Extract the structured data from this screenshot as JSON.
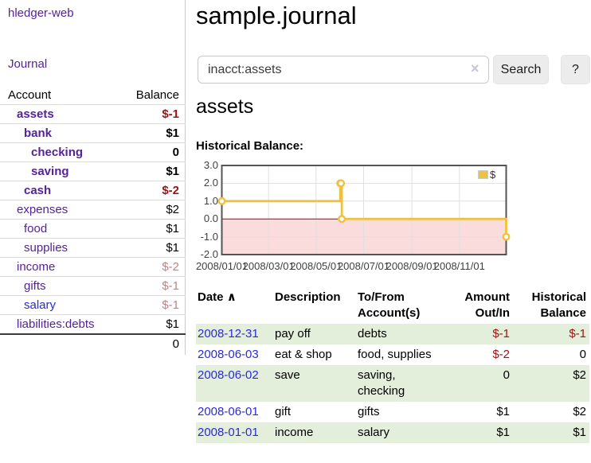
{
  "colors": {
    "link_purple": "#552299",
    "link_blue": "#2929e0",
    "negative_strong": "#a01313",
    "negative_soft": "#c4817f",
    "stripe_green": "#e3eedb",
    "chart_gold": "#edc240",
    "chart_negative_fill": "#fadcdc",
    "chart_zero_line": "#aa0000"
  },
  "sidebar": {
    "app_title": "hledger-web",
    "nav_journal": "Journal",
    "accounts_header": {
      "account": "Account",
      "balance": "Balance"
    },
    "accounts": [
      {
        "name": "assets",
        "balance": "$-1",
        "indent": 0,
        "bold": true,
        "bal_class": "neg"
      },
      {
        "name": "bank",
        "balance": "$1",
        "indent": 1,
        "bold": true
      },
      {
        "name": "checking",
        "balance": "0",
        "indent": 2,
        "bold": true
      },
      {
        "name": "saving",
        "balance": "$1",
        "indent": 2,
        "bold": true
      },
      {
        "name": "cash",
        "balance": "$-2",
        "indent": 1,
        "bold": true,
        "bal_class": "neg"
      },
      {
        "name": "expenses",
        "balance": "$2",
        "indent": 0
      },
      {
        "name": "food",
        "balance": "$1",
        "indent": 1
      },
      {
        "name": "supplies",
        "balance": "$1",
        "indent": 1
      },
      {
        "name": "income",
        "balance": "$-2",
        "indent": 0,
        "bal_class": "soft"
      },
      {
        "name": "gifts",
        "balance": "$-1",
        "indent": 1,
        "bal_class": "soft"
      },
      {
        "name": "salary",
        "balance": "$-1",
        "indent": 1,
        "blue": true,
        "bal_class": "soft"
      },
      {
        "name": "liabilities:debts",
        "balance": "$1",
        "indent": 0
      }
    ],
    "total": "0"
  },
  "header": {
    "title": "sample.journal"
  },
  "search": {
    "value": "inacct:assets",
    "clear_icon": "×",
    "button_label": "Search",
    "help_label": "?"
  },
  "account_page": {
    "title": "assets",
    "chart_label": "Historical Balance:"
  },
  "chart_data": {
    "type": "line",
    "step": true,
    "title": "Historical Balance:",
    "series": [
      {
        "name": "$",
        "color": "#edc240",
        "points": [
          [
            "2008/01/01",
            1
          ],
          [
            "2008/06/01",
            2
          ],
          [
            "2008/06/02",
            2
          ],
          [
            "2008/06/03",
            0
          ],
          [
            "2008/12/31",
            -1
          ]
        ]
      }
    ],
    "x_range": [
      "2008/01/01",
      "2008/12/31"
    ],
    "ylim": [
      -2,
      3
    ],
    "yticks": [
      3.0,
      2.0,
      1.0,
      0.0,
      -1.0,
      -2.0
    ],
    "xticks": [
      "2008/01/01",
      "2008/03/01",
      "2008/05/01",
      "2008/07/01",
      "2008/09/01",
      "2008/11/01"
    ],
    "grid": true,
    "legend_position": "top-right",
    "negative_region_color": "#fadcdc",
    "zero_line_color": "#aa0000"
  },
  "register_table": {
    "columns": {
      "date": "Date",
      "description": "Description",
      "accounts": "To/From Account(s)",
      "amount": "Amount Out/In",
      "balance": "Historical Balance"
    },
    "sort_icon": "∧",
    "rows": [
      {
        "date": "2008-12-31",
        "description": "pay off",
        "accounts": "debts",
        "amount": "$-1",
        "balance": "$-1",
        "amount_class": "neg",
        "balance_class": "neg"
      },
      {
        "date": "2008-06-03",
        "description": "eat & shop",
        "accounts": "food, supplies",
        "amount": "$-2",
        "balance": "0",
        "amount_class": "neg"
      },
      {
        "date": "2008-06-02",
        "description": "save",
        "accounts": "saving,\nchecking",
        "amount": "0",
        "balance": "$2"
      },
      {
        "date": "2008-06-01",
        "description": "gift",
        "accounts": "gifts",
        "amount": "$1",
        "balance": "$2"
      },
      {
        "date": "2008-01-01",
        "description": "income",
        "accounts": "salary",
        "amount": "$1",
        "balance": "$1"
      }
    ]
  }
}
